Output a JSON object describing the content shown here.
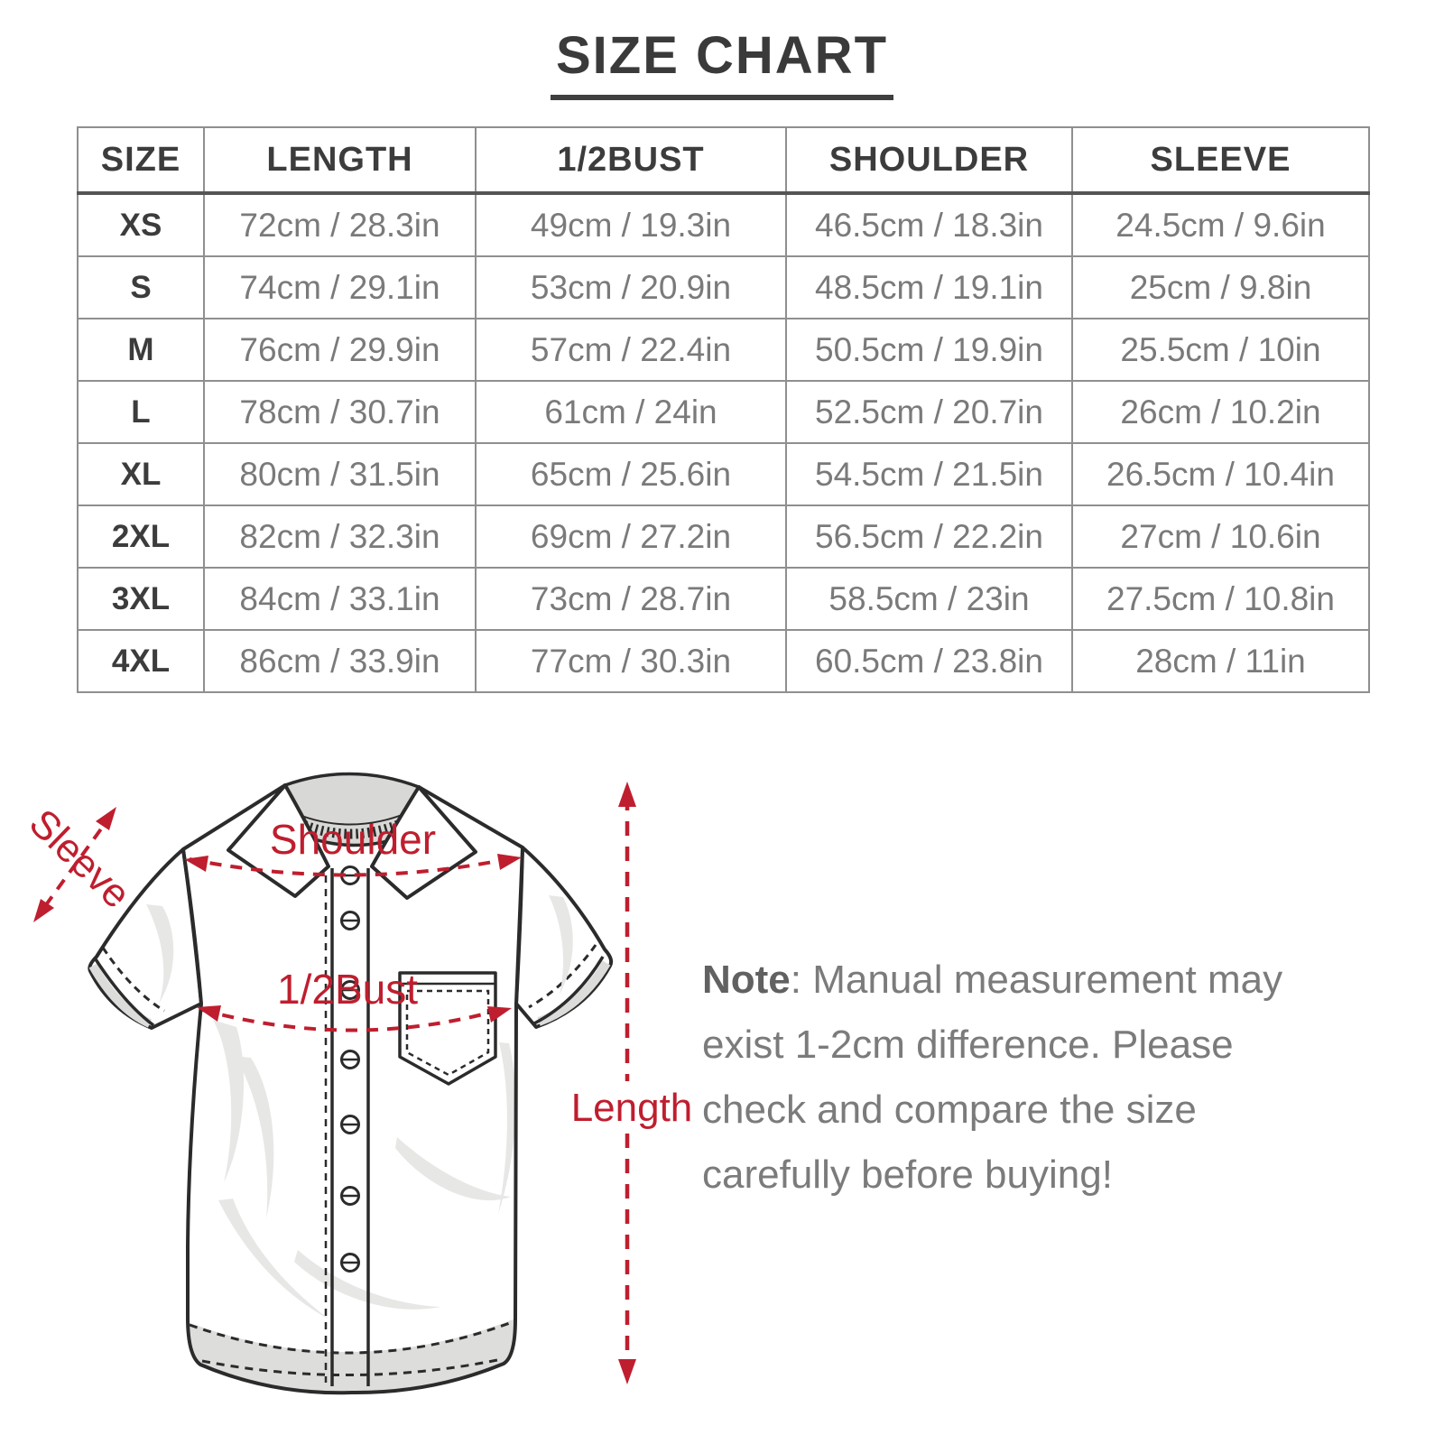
{
  "title": "SIZE CHART",
  "table": {
    "columns": [
      "SIZE",
      "LENGTH",
      "1/2BUST",
      "SHOULDER",
      "SLEEVE"
    ],
    "rows": [
      [
        "XS",
        "72cm / 28.3in",
        "49cm / 19.3in",
        "46.5cm / 18.3in",
        "24.5cm / 9.6in"
      ],
      [
        "S",
        "74cm / 29.1in",
        "53cm / 20.9in",
        "48.5cm / 19.1in",
        "25cm / 9.8in"
      ],
      [
        "M",
        "76cm / 29.9in",
        "57cm / 22.4in",
        "50.5cm / 19.9in",
        "25.5cm / 10in"
      ],
      [
        "L",
        "78cm / 30.7in",
        "61cm / 24in",
        "52.5cm / 20.7in",
        "26cm / 10.2in"
      ],
      [
        "XL",
        "80cm / 31.5in",
        "65cm / 25.6in",
        "54.5cm / 21.5in",
        "26.5cm / 10.4in"
      ],
      [
        "2XL",
        "82cm / 32.3in",
        "69cm / 27.2in",
        "56.5cm / 22.2in",
        "27cm / 10.6in"
      ],
      [
        "3XL",
        "84cm / 33.1in",
        "73cm / 28.7in",
        "58.5cm / 23in",
        "27.5cm / 10.8in"
      ],
      [
        "4XL",
        "86cm / 33.9in",
        "77cm / 30.3in",
        "60.5cm / 23.8in",
        "28cm / 11in"
      ]
    ]
  },
  "diagram": {
    "labels": {
      "sleeve": "Sleeve",
      "shoulder": "Shoulder",
      "bust": "1/2Bust",
      "length": "Length"
    }
  },
  "note": {
    "label": "Note",
    "lines": [
      ": Manual measurement may",
      "exist 1-2cm difference. Please",
      "check and compare the size",
      "carefully before buying!"
    ]
  },
  "colors": {
    "accent_red": "#bf1e2e",
    "heading": "#3a3a3a",
    "body_text": "#7a7a7a",
    "table_border": "#8f8f8f"
  },
  "chart_data": {
    "type": "table",
    "title": "SIZE CHART",
    "columns": [
      "SIZE",
      "LENGTH",
      "1/2BUST",
      "SHOULDER",
      "SLEEVE"
    ],
    "rows": [
      [
        "XS",
        "72cm / 28.3in",
        "49cm / 19.3in",
        "46.5cm / 18.3in",
        "24.5cm / 9.6in"
      ],
      [
        "S",
        "74cm / 29.1in",
        "53cm / 20.9in",
        "48.5cm / 19.1in",
        "25cm / 9.8in"
      ],
      [
        "M",
        "76cm / 29.9in",
        "57cm / 22.4in",
        "50.5cm / 19.9in",
        "25.5cm / 10in"
      ],
      [
        "L",
        "78cm / 30.7in",
        "61cm / 24in",
        "52.5cm / 20.7in",
        "26cm / 10.2in"
      ],
      [
        "XL",
        "80cm / 31.5in",
        "65cm / 25.6in",
        "54.5cm / 21.5in",
        "26.5cm / 10.4in"
      ],
      [
        "2XL",
        "82cm / 32.3in",
        "69cm / 27.2in",
        "56.5cm / 22.2in",
        "27cm / 10.6in"
      ],
      [
        "3XL",
        "84cm / 33.1in",
        "73cm / 28.7in",
        "58.5cm / 23in",
        "27.5cm / 10.8in"
      ],
      [
        "4XL",
        "86cm / 33.9in",
        "77cm / 30.3in",
        "60.5cm / 23.8in",
        "28cm / 11in"
      ]
    ],
    "note": "Manual measurement may exist 1-2cm difference."
  }
}
